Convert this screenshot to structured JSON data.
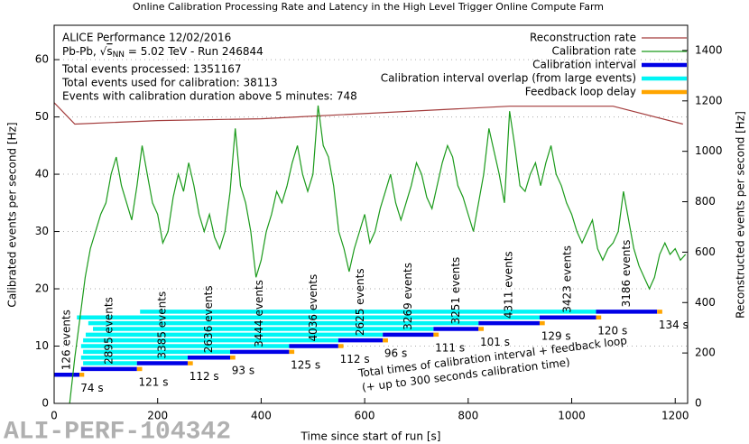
{
  "chart_data": {
    "type": "line",
    "title": "Online Calibration Processing Rate and Latency in the High Level Trigger Online Compute Farm",
    "xlabel": "Time since start of run [s]",
    "ylabel": "Calibrated events per second [Hz]",
    "y2label": "Reconstructed events per second [Hz]",
    "xlim": [
      0,
      1224
    ],
    "ylim": [
      0,
      66
    ],
    "y2lim": [
      0,
      1500
    ],
    "xticks": [
      0,
      200,
      400,
      600,
      800,
      1000,
      1200
    ],
    "yticks": [
      0,
      10,
      20,
      30,
      40,
      50,
      60
    ],
    "y2ticks": [
      0,
      200,
      400,
      600,
      800,
      1000,
      1200,
      1400
    ],
    "grid": true,
    "legend": "upper right",
    "series": [
      {
        "name": "Reconstruction rate",
        "color": "#a33b3b",
        "axis": "y2",
        "x": [
          0,
          40,
          200,
          400,
          880,
          1080,
          1215
        ],
        "values": [
          1193,
          1108,
          1122,
          1129,
          1179,
          1179,
          1108
        ]
      },
      {
        "name": "Calibration rate",
        "color": "#1a9a1a",
        "x": [
          30,
          40,
          50,
          60,
          70,
          80,
          90,
          100,
          110,
          120,
          130,
          140,
          150,
          160,
          170,
          180,
          190,
          200,
          210,
          220,
          230,
          240,
          250,
          260,
          270,
          280,
          290,
          300,
          310,
          320,
          330,
          340,
          350,
          360,
          370,
          380,
          390,
          400,
          410,
          420,
          430,
          440,
          450,
          460,
          470,
          480,
          490,
          500,
          510,
          520,
          530,
          540,
          550,
          560,
          570,
          580,
          590,
          600,
          610,
          620,
          630,
          640,
          650,
          660,
          670,
          680,
          690,
          700,
          710,
          720,
          730,
          740,
          750,
          760,
          770,
          780,
          790,
          800,
          810,
          820,
          830,
          840,
          850,
          860,
          870,
          880,
          890,
          900,
          910,
          920,
          930,
          940,
          950,
          960,
          970,
          980,
          990,
          1000,
          1010,
          1020,
          1030,
          1040,
          1050,
          1060,
          1070,
          1080,
          1090,
          1100,
          1110,
          1120,
          1130,
          1140,
          1150,
          1160,
          1170,
          1180,
          1190,
          1200,
          1210,
          1220
        ],
        "values": [
          0,
          8,
          15,
          22,
          27,
          30,
          33,
          35,
          40,
          43,
          38,
          35,
          32,
          38,
          45,
          40,
          35,
          33,
          28,
          30,
          36,
          40,
          37,
          42,
          38,
          33,
          30,
          33,
          29,
          27,
          30,
          37,
          48,
          38,
          35,
          30,
          22,
          25,
          30,
          33,
          37,
          35,
          38,
          42,
          45,
          40,
          37,
          40,
          52,
          45,
          43,
          38,
          30,
          27,
          23,
          27,
          30,
          33,
          28,
          30,
          34,
          37,
          40,
          35,
          32,
          35,
          38,
          42,
          40,
          36,
          34,
          38,
          42,
          45,
          43,
          38,
          36,
          33,
          30,
          35,
          40,
          48,
          44,
          40,
          35,
          51,
          45,
          38,
          37,
          40,
          42,
          38,
          42,
          45,
          40,
          38,
          35,
          33,
          30,
          28,
          30,
          32,
          27,
          25,
          27,
          28,
          30,
          37,
          32,
          27,
          24,
          22,
          20,
          22,
          26,
          28,
          26,
          27,
          25,
          26
        ]
      }
    ],
    "intervals": {
      "name": "Calibration interval",
      "color": "#0000e6",
      "overlap_name": "Calibration interval overlap (from large events)",
      "overlap_color": "#00f5f5",
      "feedback_name": "Feedback loop delay",
      "feedback_color": "#ffa500",
      "items": [
        {
          "start": 0,
          "end": 49,
          "feedback_end": 58,
          "level": 5,
          "overlap_start": null,
          "events": "126 events",
          "time": "74 s"
        },
        {
          "start": 52,
          "end": 160,
          "feedback_end": 170,
          "level": 6,
          "overlap_start": null,
          "events": "2895 events",
          "time": "121 s"
        },
        {
          "start": 160,
          "end": 258,
          "feedback_end": 268,
          "level": 7,
          "overlap_start": 56,
          "events": "3385 events",
          "time": "112 s"
        },
        {
          "start": 258,
          "end": 340,
          "feedback_end": 350,
          "level": 8,
          "overlap_start": 52,
          "events": "2636 events",
          "time": "93 s"
        },
        {
          "start": 340,
          "end": 454,
          "feedback_end": 464,
          "level": 9,
          "overlap_start": 56,
          "events": "3444 events",
          "time": "125 s"
        },
        {
          "start": 454,
          "end": 549,
          "feedback_end": 559,
          "level": 10,
          "overlap_start": 52,
          "events": "4036 events",
          "time": "112 s"
        },
        {
          "start": 549,
          "end": 635,
          "feedback_end": 645,
          "level": 11,
          "overlap_start": 56,
          "events": "2625 events",
          "time": "96 s"
        },
        {
          "start": 635,
          "end": 733,
          "feedback_end": 743,
          "level": 12,
          "overlap_start": 61,
          "events": "3269 events",
          "time": "111 s"
        },
        {
          "start": 733,
          "end": 820,
          "feedback_end": 830,
          "level": 13,
          "overlap_start": 75,
          "events": "3251 events",
          "time": "101 s"
        },
        {
          "start": 820,
          "end": 938,
          "feedback_end": 948,
          "level": 14,
          "overlap_start": 66,
          "events": "4311 events",
          "time": "129 s"
        },
        {
          "start": 938,
          "end": 1047,
          "feedback_end": 1057,
          "level": 15,
          "overlap_start": 44,
          "events": "3423 events",
          "time": "120 s"
        },
        {
          "start": 1047,
          "end": 1165,
          "feedback_end": 1175,
          "level": 16,
          "overlap_start": 166,
          "events": "3186 events",
          "time": "134 s"
        }
      ]
    },
    "info": {
      "line1": "ALICE Performance 12/02/2016",
      "line2": {
        "pre": "Pb-Pb, √",
        "s": "s",
        "sub": "NN",
        "post": " = 5.02 TeV - Run 246844"
      },
      "line3": "Total events processed: 1351167",
      "line4": "Total events used for calibration: 38113",
      "line5": "Events with calibration duration above 5 minutes: 748"
    },
    "annotation": [
      "Total times of calibration interval + feedback loop",
      "(+ up to 300 seconds calibration time)"
    ],
    "watermark": "ALI-PERF-104342"
  }
}
